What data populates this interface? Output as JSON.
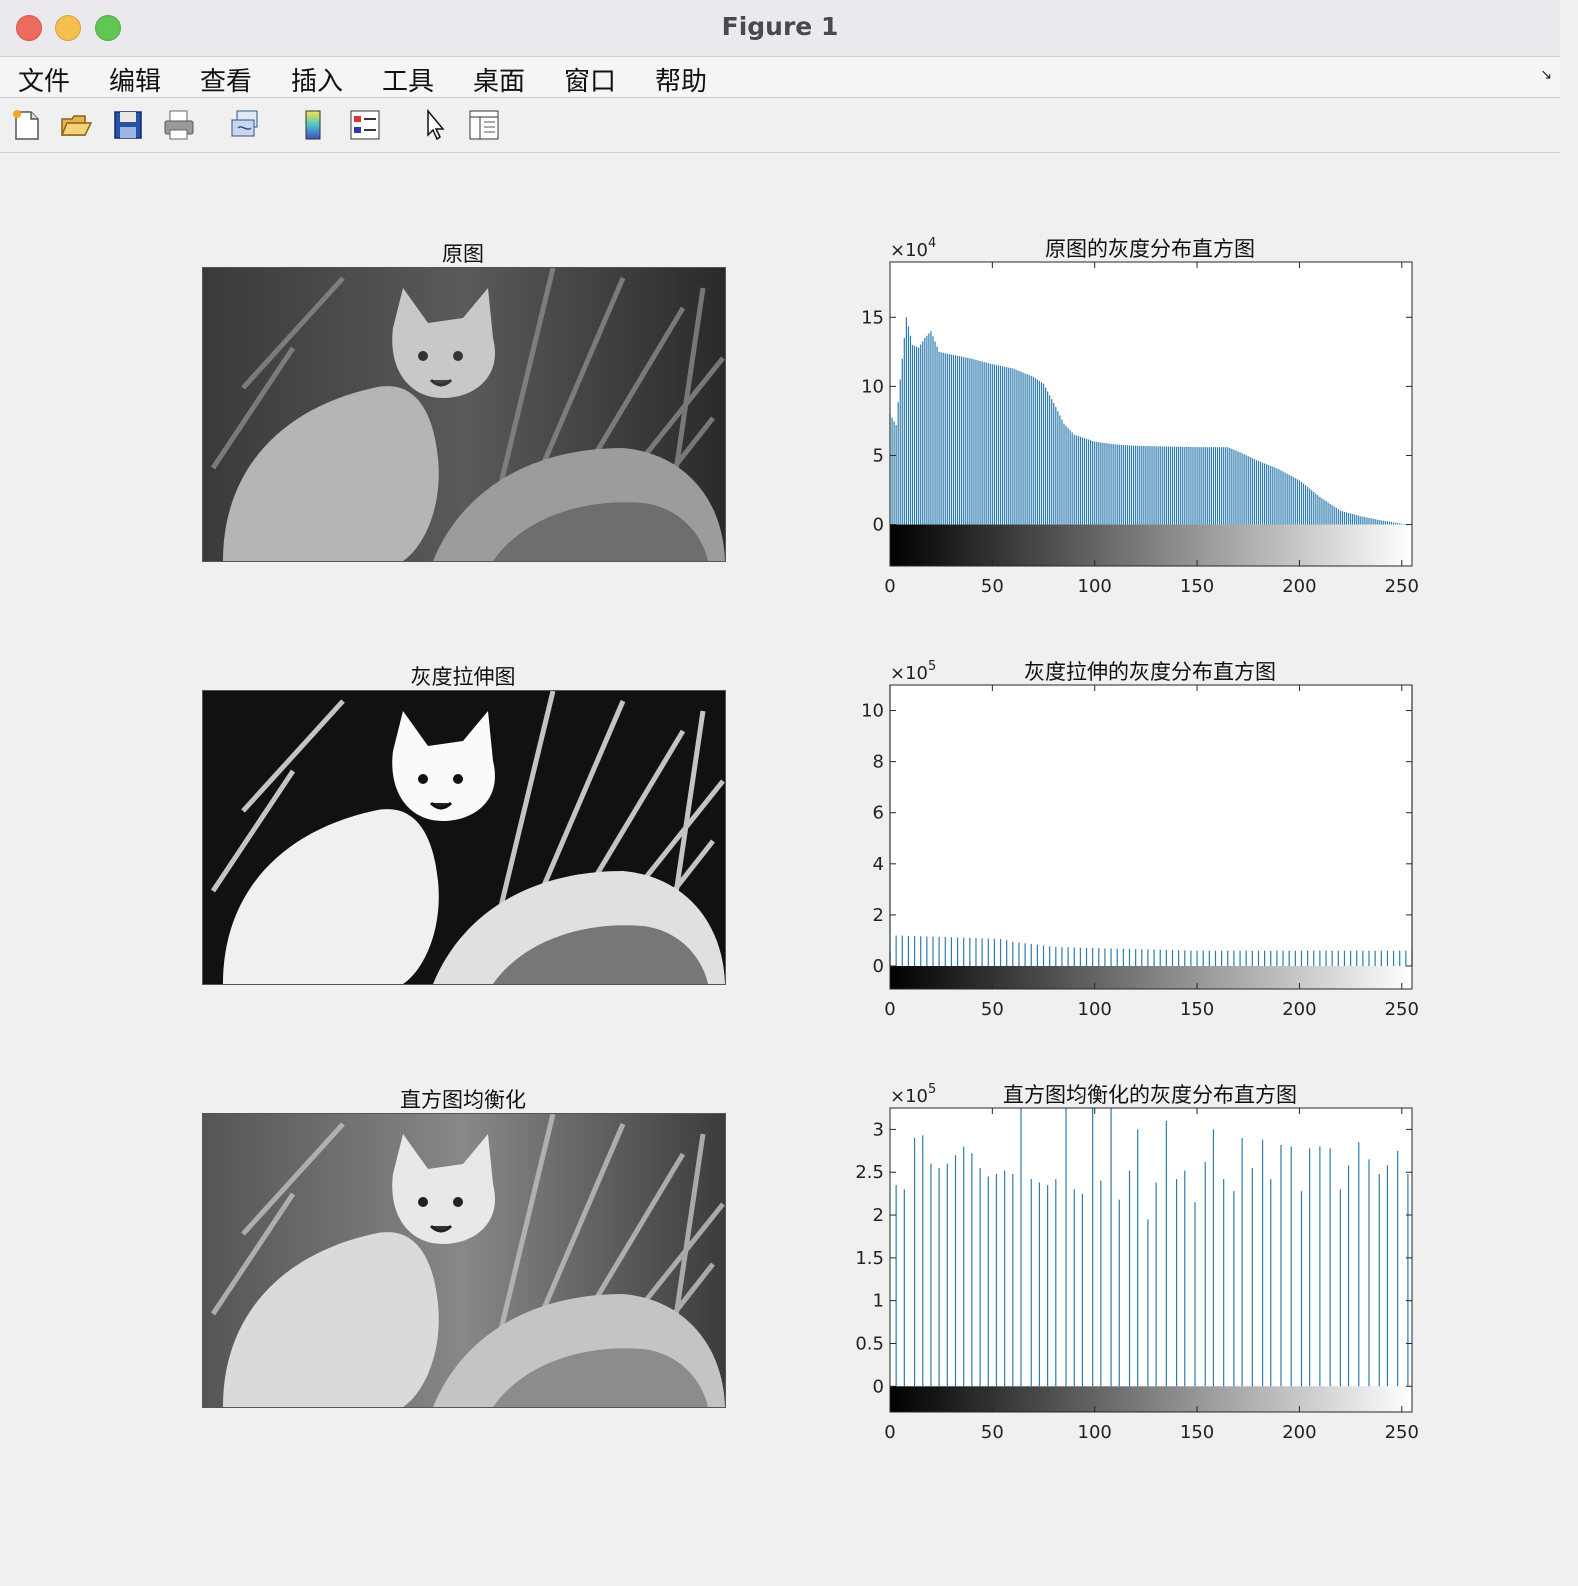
{
  "window": {
    "title": "Figure 1"
  },
  "menubar": {
    "items": [
      "文件",
      "编辑",
      "查看",
      "插入",
      "工具",
      "桌面",
      "窗口",
      "帮助"
    ]
  },
  "toolbar": {
    "icons": [
      "new-figure-icon",
      "open-file-icon",
      "save-icon",
      "print-icon",
      "link-icon",
      "colorbar-icon",
      "legend-icon",
      "pointer-icon",
      "property-inspector-icon"
    ]
  },
  "images": [
    {
      "title": "原图",
      "variant": "original"
    },
    {
      "title": "灰度拉伸图",
      "variant": "stretched"
    },
    {
      "title": "直方图均衡化",
      "variant": "equalized"
    }
  ],
  "chart_data": [
    {
      "type": "bar",
      "title": "原图的灰度分布直方图",
      "exponent_label": "×10",
      "exponent": "4",
      "xlim": [
        0,
        255
      ],
      "ylim": [
        -3,
        19
      ],
      "xticks": [
        0,
        50,
        100,
        150,
        200,
        250
      ],
      "yticks": [
        0,
        5,
        10,
        15
      ],
      "ytick_labels": [
        "0",
        "5",
        "10",
        "15"
      ],
      "bar_color": "#2e7bad",
      "profile": [
        [
          0,
          8
        ],
        [
          3,
          7.2
        ],
        [
          5,
          10.5
        ],
        [
          8,
          15
        ],
        [
          11,
          13
        ],
        [
          14,
          12.8
        ],
        [
          17,
          13.5
        ],
        [
          20,
          14
        ],
        [
          24,
          12.5
        ],
        [
          30,
          12.3
        ],
        [
          40,
          12
        ],
        [
          50,
          11.6
        ],
        [
          60,
          11.3
        ],
        [
          70,
          10.7
        ],
        [
          75,
          10.2
        ],
        [
          80,
          8.8
        ],
        [
          85,
          7.3
        ],
        [
          90,
          6.5
        ],
        [
          100,
          6.0
        ],
        [
          110,
          5.8
        ],
        [
          120,
          5.7
        ],
        [
          150,
          5.6
        ],
        [
          165,
          5.6
        ],
        [
          170,
          5.3
        ],
        [
          180,
          4.6
        ],
        [
          190,
          4.0
        ],
        [
          200,
          3.2
        ],
        [
          210,
          2.0
        ],
        [
          220,
          1.0
        ],
        [
          230,
          0.6
        ],
        [
          240,
          0.3
        ],
        [
          250,
          0.05
        ],
        [
          255,
          0.0
        ]
      ],
      "xlabel": "",
      "ylabel": "",
      "legend": "none",
      "grid": false
    },
    {
      "type": "bar",
      "title": "灰度拉伸的灰度分布直方图",
      "exponent_label": "×10",
      "exponent": "5",
      "xlim": [
        0,
        255
      ],
      "ylim": [
        -0.9,
        11
      ],
      "xticks": [
        0,
        50,
        100,
        150,
        200,
        250
      ],
      "yticks": [
        0,
        2,
        4,
        6,
        8,
        10
      ],
      "ytick_labels": [
        "0",
        "2",
        "4",
        "6",
        "8",
        "10"
      ],
      "bar_color": "#2e7bad",
      "spikes_x": [
        0,
        255
      ],
      "spikes_y": [
        11,
        11
      ],
      "bar_step": 3,
      "profile": [
        [
          1,
          1.2
        ],
        [
          20,
          1.15
        ],
        [
          40,
          1.1
        ],
        [
          55,
          1.05
        ],
        [
          60,
          0.95
        ],
        [
          70,
          0.85
        ],
        [
          80,
          0.75
        ],
        [
          100,
          0.7
        ],
        [
          150,
          0.6
        ],
        [
          250,
          0.6
        ]
      ],
      "xlabel": "",
      "ylabel": "",
      "legend": "none",
      "grid": false
    },
    {
      "type": "bar",
      "title": "直方图均衡化的灰度分布直方图",
      "exponent_label": "×10",
      "exponent": "5",
      "xlim": [
        0,
        255
      ],
      "ylim": [
        -0.3,
        3.25
      ],
      "xticks": [
        0,
        50,
        100,
        150,
        200,
        250
      ],
      "yticks": [
        0,
        0.5,
        1,
        1.5,
        2,
        2.5,
        3
      ],
      "ytick_labels": [
        "0",
        "0.5",
        "1",
        "1.5",
        "2",
        "2.5",
        "3"
      ],
      "bar_color": "#2e7bad",
      "x": [
        3,
        7,
        12,
        16,
        20,
        24,
        28,
        32,
        36,
        40,
        44,
        48,
        52,
        56,
        60,
        64,
        69,
        73,
        77,
        81,
        86,
        90,
        94,
        99,
        103,
        108,
        112,
        117,
        121,
        126,
        130,
        135,
        140,
        144,
        149,
        154,
        158,
        163,
        168,
        172,
        177,
        182,
        186,
        191,
        196,
        201,
        205,
        210,
        215,
        220,
        224,
        229,
        234,
        239,
        243,
        248,
        253
      ],
      "y": [
        2.35,
        2.3,
        2.9,
        2.93,
        2.6,
        2.55,
        2.6,
        2.7,
        2.8,
        2.72,
        2.55,
        2.45,
        2.48,
        2.52,
        2.48,
        3.25,
        2.42,
        2.38,
        2.35,
        2.42,
        3.25,
        2.3,
        2.25,
        3.25,
        2.4,
        3.25,
        2.18,
        2.52,
        3.0,
        1.95,
        2.38,
        3.1,
        2.42,
        2.52,
        2.15,
        2.62,
        3.0,
        2.42,
        2.28,
        2.9,
        2.55,
        2.88,
        2.42,
        2.82,
        2.8,
        2.28,
        2.78,
        2.8,
        2.78,
        2.3,
        2.58,
        2.85,
        2.65,
        2.48,
        2.58,
        2.75,
        2.48
      ],
      "xlabel": "",
      "ylabel": "",
      "legend": "none",
      "grid": false
    }
  ]
}
